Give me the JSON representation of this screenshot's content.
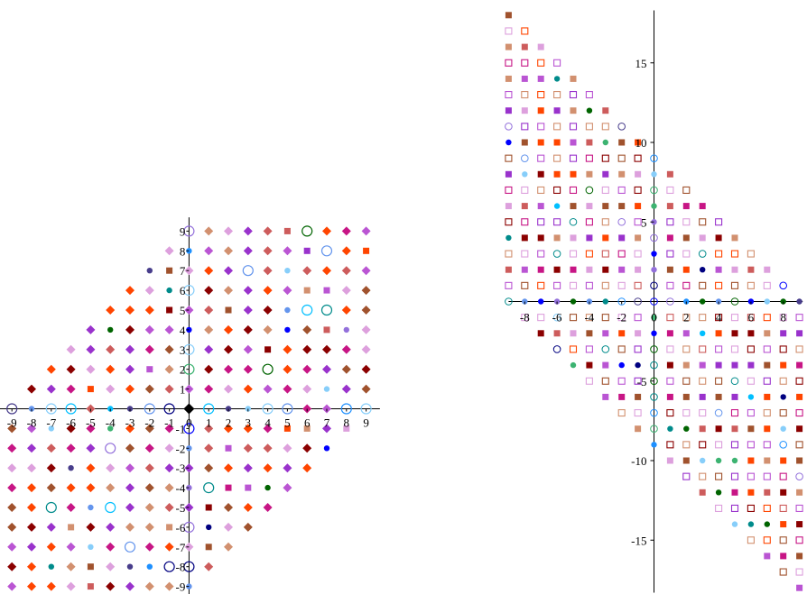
{
  "chart_data": [
    {
      "type": "scatter",
      "title": "",
      "xlabel": "",
      "ylabel": "",
      "xlim": [
        -9.7,
        9.7
      ],
      "ylim": [
        -9.7,
        9.7
      ],
      "grid": false,
      "x_ticks": [
        "-9",
        "-8",
        "-7",
        "-6",
        "-5",
        "-4",
        "-3",
        "-2",
        "-1",
        "0",
        "1",
        "2",
        "3",
        "4",
        "5",
        "6",
        "7",
        "8",
        "9"
      ],
      "x_tick_values": [
        -9,
        -8,
        -7,
        -6,
        -5,
        -4,
        -3,
        -2,
        -1,
        0,
        1,
        2,
        3,
        4,
        5,
        6,
        7,
        8,
        9
      ],
      "y_ticks": [
        "-9",
        "-8",
        "-7",
        "-6",
        "-5",
        "-4",
        "-3",
        "-2",
        "-1",
        "1",
        "2",
        "3",
        "4",
        "5",
        "6",
        "7",
        "8",
        "9"
      ],
      "y_tick_values": [
        -9,
        -8,
        -7,
        -6,
        -5,
        -4,
        -3,
        -2,
        -1,
        1,
        2,
        3,
        4,
        5,
        6,
        7,
        8,
        9
      ],
      "region": "integer lattice points with x - y between -9 and 9",
      "series": [
        {
          "marker": "diamond",
          "color_index": 0,
          "note": "filled diamonds at most lattice points"
        },
        {
          "marker": "open-circle",
          "color_index": 1,
          "note": "open circles on some points"
        },
        {
          "marker": "filled-circle",
          "color_index": 2,
          "note": "small filled circles on some points"
        },
        {
          "marker": "filled-square",
          "color_index": 3,
          "note": "small squares on some points"
        }
      ]
    },
    {
      "type": "scatter",
      "title": "",
      "xlabel": "",
      "ylabel": "",
      "xlim": [
        -9,
        9
      ],
      "ylim": [
        -18.3,
        18.3
      ],
      "grid": false,
      "x_ticks": [
        "-8",
        "-6",
        "-4",
        "-2",
        "0",
        "2",
        "4",
        "6",
        "8"
      ],
      "x_tick_values": [
        -8,
        -6,
        -4,
        -2,
        0,
        2,
        4,
        6,
        8
      ],
      "y_ticks": [
        "-15",
        "-10",
        "-5",
        "5",
        "10",
        "15"
      ],
      "y_tick_values": [
        -15,
        -10,
        -5,
        5,
        10,
        15
      ],
      "region": "integer lattice points with x + y between -9 and 9",
      "series": [
        {
          "marker": "filled-square",
          "color_index": 0,
          "note": "filled squares"
        },
        {
          "marker": "open-square",
          "color_index": 1,
          "note": "open squares"
        },
        {
          "marker": "filled-circle",
          "color_index": 2,
          "note": "filled circles"
        },
        {
          "marker": "open-circle",
          "color_index": 3,
          "note": "open circles"
        }
      ]
    }
  ],
  "colors": {
    "palette_diamond": [
      "#c71585",
      "#9932cc",
      "#8b0000",
      "#a0522d",
      "#d2906f",
      "#dda0dd",
      "#ff4500",
      "#cd5c5c",
      "#ba55d3"
    ],
    "palette_square": [
      "#dda0dd",
      "#c71585",
      "#8b0000",
      "#ff4500",
      "#9932cc",
      "#cd5c5c",
      "#d2906f",
      "#ba55d3",
      "#a0522d"
    ],
    "circle_colors": [
      "#00bfff",
      "#000080",
      "#006400",
      "#0000ff",
      "#87cefa",
      "#483d8b",
      "#3cb371",
      "#008b8b",
      "#1e90ff",
      "#9370db",
      "#6495ed"
    ],
    "axis": "#000000"
  }
}
